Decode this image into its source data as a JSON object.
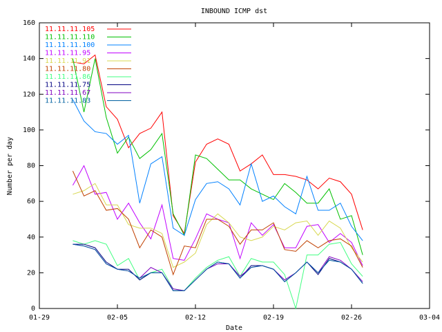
{
  "chart_data": {
    "type": "line",
    "title": "INBOUND ICMP dst",
    "xlabel": "Date",
    "ylabel": "Number per day",
    "x": [
      "02-01",
      "02-02",
      "02-03",
      "02-04",
      "02-05",
      "02-06",
      "02-07",
      "02-08",
      "02-09",
      "02-10",
      "02-11",
      "02-12",
      "02-13",
      "02-14",
      "02-15",
      "02-16",
      "02-17",
      "02-18",
      "02-19",
      "02-20",
      "02-21",
      "02-22",
      "02-23",
      "02-24",
      "02-25",
      "02-26",
      "02-27"
    ],
    "xlim": [
      "01-29",
      "03-04"
    ],
    "xticks": [
      "01-29",
      "02-05",
      "02-12",
      "02-19",
      "02-26",
      "03-04"
    ],
    "ylim": [
      0,
      160
    ],
    "yticks": [
      0,
      20,
      40,
      60,
      80,
      100,
      120,
      140,
      160
    ],
    "grid": false,
    "legend": "top-left",
    "series": [
      {
        "name": "11.11.11.105",
        "color": "#ff0000",
        "values": [
          138,
          137,
          142,
          113,
          106,
          90,
          98,
          101,
          110,
          52,
          42,
          82,
          92,
          95,
          92,
          77,
          81,
          86,
          75,
          75,
          74,
          72,
          67,
          73,
          71,
          64,
          44
        ]
      },
      {
        "name": "11.11.11.110",
        "color": "#00c000",
        "values": [
          140,
          110,
          140,
          107,
          87,
          96,
          84,
          89,
          98,
          53,
          41,
          86,
          84,
          78,
          72,
          72,
          67,
          64,
          61,
          70,
          65,
          59,
          59,
          67,
          50,
          52,
          30
        ]
      },
      {
        "name": "11.11.11.100",
        "color": "#0080ff",
        "values": [
          117,
          105,
          99,
          98,
          92,
          97,
          59,
          81,
          85,
          45,
          41,
          61,
          70,
          71,
          67,
          58,
          81,
          60,
          63,
          57,
          53,
          74,
          55,
          55,
          59,
          46,
          38
        ]
      },
      {
        "name": "11.11.11.95",
        "color": "#c000ff",
        "values": [
          69,
          80,
          64,
          65,
          50,
          59,
          48,
          39,
          58,
          28,
          27,
          39,
          53,
          50,
          48,
          28,
          48,
          41,
          47,
          34,
          34,
          46,
          47,
          37,
          42,
          37,
          24
        ]
      },
      {
        "name": "11.11.11.91",
        "color": "#d8d850",
        "values": [
          64,
          66,
          70,
          58,
          58,
          47,
          45,
          45,
          42,
          23,
          26,
          31,
          47,
          53,
          48,
          40,
          38,
          40,
          46,
          44,
          48,
          49,
          41,
          49,
          45,
          34,
          26
        ]
      },
      {
        "name": "11.11.11.80",
        "color": "#c04000",
        "values": [
          77,
          63,
          66,
          55,
          56,
          50,
          34,
          44,
          40,
          19,
          35,
          34,
          50,
          50,
          46,
          36,
          44,
          44,
          48,
          33,
          32,
          38,
          34,
          38,
          39,
          35,
          23
        ]
      },
      {
        "name": "11.11.11.86",
        "color": "#40ff80",
        "values": [
          38,
          36,
          38,
          36,
          24,
          28,
          16,
          20,
          22,
          11,
          10,
          17,
          23,
          27,
          29,
          18,
          28,
          26,
          26,
          19,
          0,
          30,
          30,
          36,
          37,
          25,
          18
        ]
      },
      {
        "name": "11.11.11.75",
        "color": "#000080",
        "values": [
          36,
          36,
          34,
          26,
          22,
          22,
          16,
          20,
          20,
          10,
          10,
          16,
          22,
          26,
          25,
          17,
          24,
          24,
          22,
          15,
          20,
          26,
          19,
          28,
          26,
          22,
          14
        ]
      },
      {
        "name": "11.11.11.67",
        "color": "#8000c0",
        "values": [
          36,
          35,
          33,
          25,
          22,
          21,
          17,
          23,
          20,
          11,
          10,
          16,
          22,
          25,
          25,
          18,
          23,
          24,
          22,
          16,
          20,
          26,
          20,
          29,
          27,
          22,
          15
        ]
      },
      {
        "name": "11.11.11.83",
        "color": "#0060a0",
        "values": [
          36,
          35,
          33,
          25,
          22,
          21,
          17,
          20,
          20,
          10,
          10,
          16,
          22,
          26,
          25,
          17,
          23,
          24,
          22,
          15,
          20,
          26,
          20,
          27,
          26,
          22,
          14
        ]
      }
    ]
  }
}
